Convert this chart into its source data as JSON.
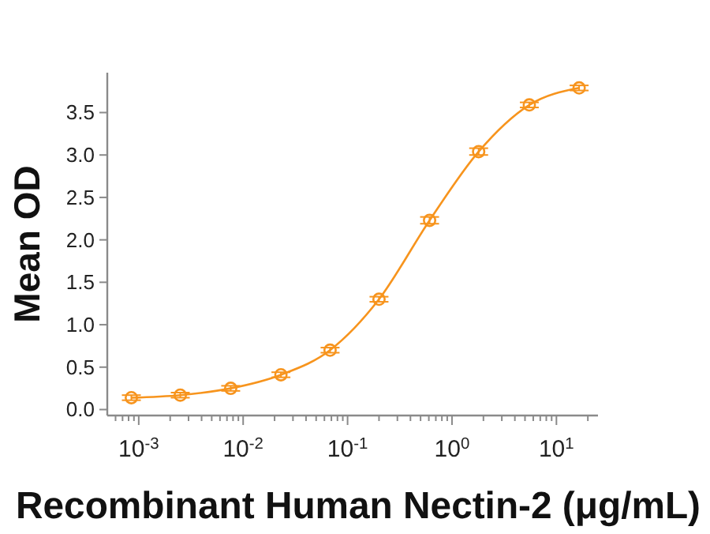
{
  "chart_data": {
    "type": "line",
    "xlabel": "Recombinant Human Nectin-2 (μg/mL)",
    "ylabel": "Mean OD",
    "x": [
      0.00085,
      0.0025,
      0.0076,
      0.023,
      0.068,
      0.2,
      0.61,
      1.8,
      5.5,
      16.5
    ],
    "series": [
      {
        "color": "#f7941d",
        "values": [
          0.14,
          0.17,
          0.25,
          0.41,
          0.7,
          1.3,
          2.23,
          3.04,
          3.59,
          3.79
        ],
        "errors": [
          0.03,
          0.03,
          0.03,
          0.03,
          0.03,
          0.03,
          0.04,
          0.04,
          0.03,
          0.03
        ]
      }
    ],
    "log": "x",
    "xlim": [
      0.0005,
      25
    ],
    "xticks": [
      {
        "value": 0.0006,
        "label": null
      },
      {
        "value": 0.0007,
        "label": null
      },
      {
        "value": 0.0008,
        "label": null
      },
      {
        "value": 0.0009,
        "label": null
      },
      {
        "value": 0.001,
        "label": "10$^{-3}$"
      },
      {
        "value": 0.002,
        "label": null
      },
      {
        "value": 0.003,
        "label": null
      },
      {
        "value": 0.004,
        "label": null
      },
      {
        "value": 0.005,
        "label": null
      },
      {
        "value": 0.006,
        "label": null
      },
      {
        "value": 0.007,
        "label": null
      },
      {
        "value": 0.008,
        "label": null
      },
      {
        "value": 0.009,
        "label": null
      },
      {
        "value": 0.01,
        "label": "10$^{-2}$"
      },
      {
        "value": 0.02,
        "label": null
      },
      {
        "value": 0.03,
        "label": null
      },
      {
        "value": 0.04,
        "label": null
      },
      {
        "value": 0.05,
        "label": null
      },
      {
        "value": 0.06,
        "label": null
      },
      {
        "value": 0.07,
        "label": null
      },
      {
        "value": 0.08,
        "label": null
      },
      {
        "value": 0.09,
        "label": null
      },
      {
        "value": 0.1,
        "label": "10$^{-1}$"
      },
      {
        "value": 0.2,
        "label": null
      },
      {
        "value": 0.3,
        "label": null
      },
      {
        "value": 0.4,
        "label": null
      },
      {
        "value": 0.5,
        "label": null
      },
      {
        "value": 0.6,
        "label": null
      },
      {
        "value": 0.7,
        "label": null
      },
      {
        "value": 0.8,
        "label": null
      },
      {
        "value": 0.9,
        "label": null
      },
      {
        "value": 1,
        "label": "10$^{0}$"
      },
      {
        "value": 2,
        "label": null
      },
      {
        "value": 3,
        "label": null
      },
      {
        "value": 4,
        "label": null
      },
      {
        "value": 5,
        "label": null
      },
      {
        "value": 6,
        "label": null
      },
      {
        "value": 7,
        "label": null
      },
      {
        "value": 8,
        "label": null
      },
      {
        "value": 9,
        "label": null
      },
      {
        "value": 10,
        "label": "10$^{1}$"
      },
      {
        "value": 20,
        "label": null
      }
    ],
    "ylim": [
      -0.07,
      3.97
    ],
    "yticks": [
      {
        "value": 0,
        "label": "0.0"
      },
      {
        "value": 0.5,
        "label": "0.5"
      },
      {
        "value": 1,
        "label": "1.0"
      },
      {
        "value": 1.5,
        "label": "1.5"
      },
      {
        "value": 2,
        "label": "2.0"
      },
      {
        "value": 2.5,
        "label": "2.5"
      },
      {
        "value": 3,
        "label": "3.0"
      },
      {
        "value": 3.5,
        "label": "3.5"
      }
    ],
    "marker": "circle",
    "line_style": "solid"
  }
}
